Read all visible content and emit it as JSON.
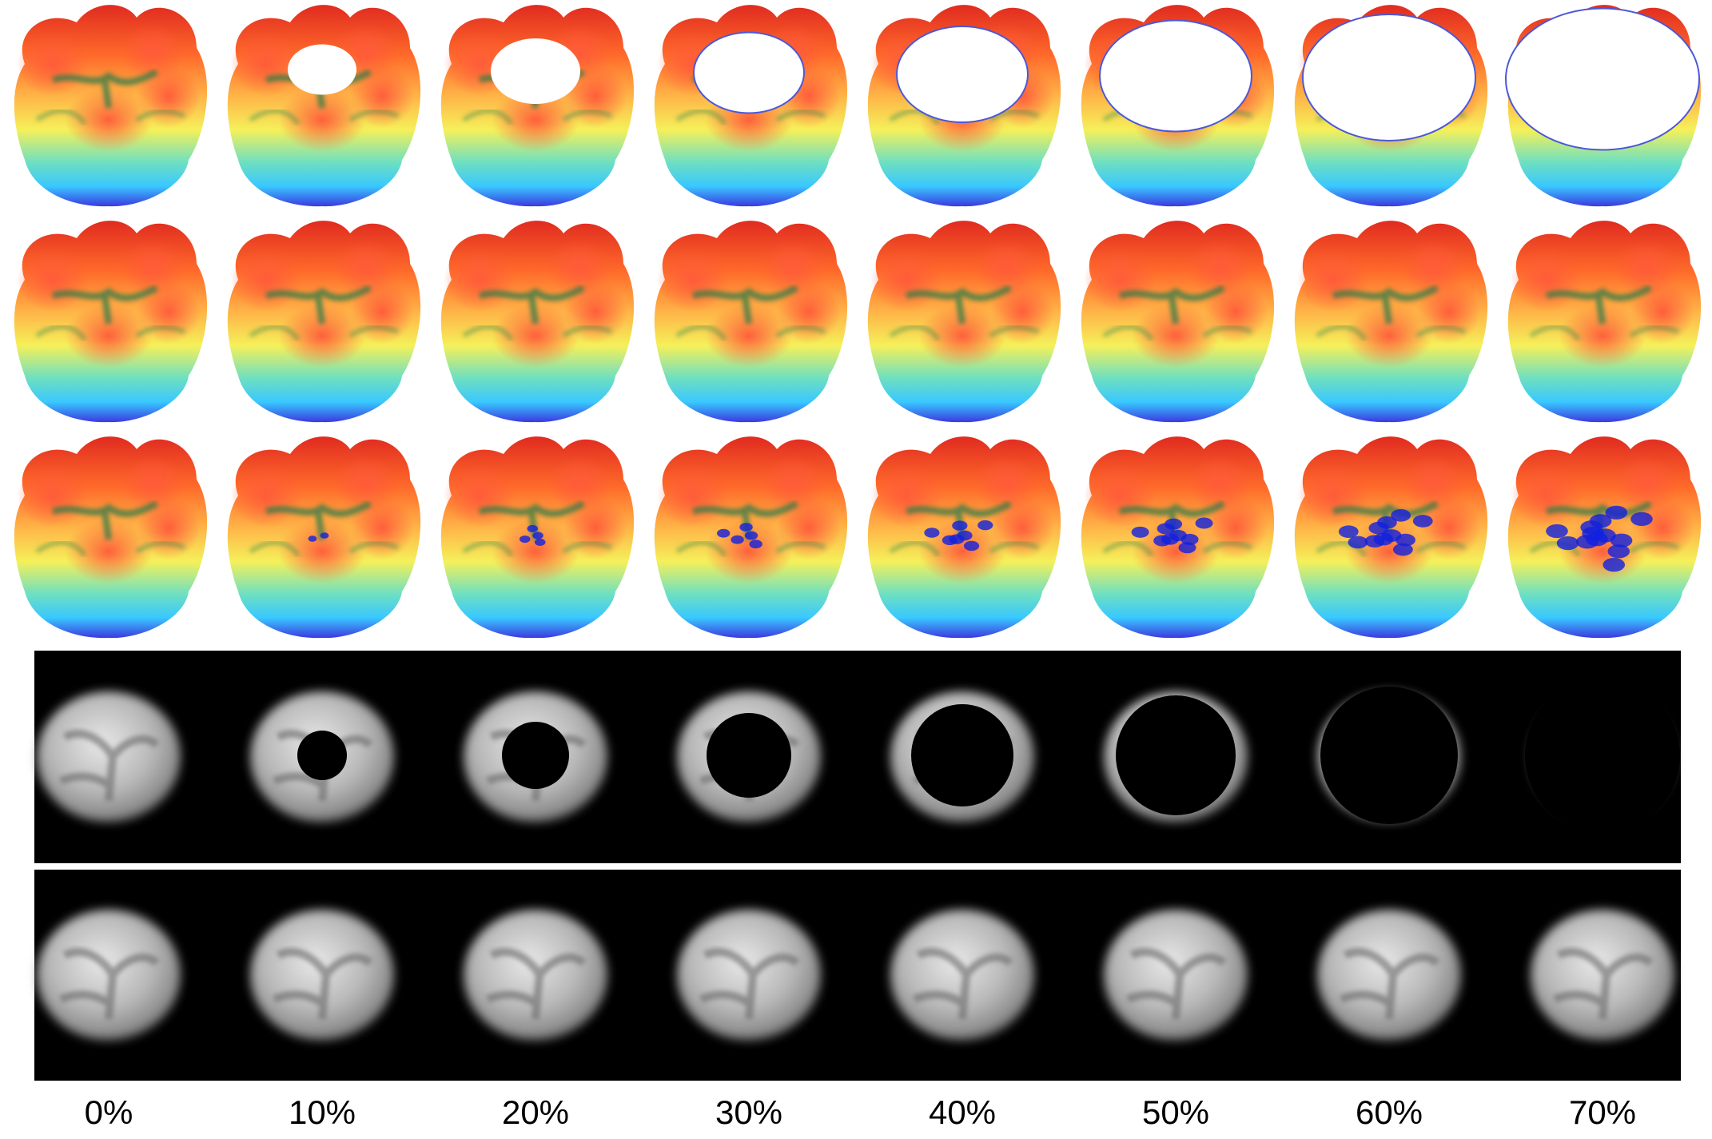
{
  "figure": {
    "percent_labels": [
      "0%",
      "10%",
      "20%",
      "30%",
      "40%",
      "50%",
      "60%",
      "70%"
    ],
    "rows": [
      {
        "kind": "surface-3d",
        "content": "masked",
        "hole_fraction": [
          0,
          0.1,
          0.2,
          0.3,
          0.4,
          0.5,
          0.6,
          0.7
        ]
      },
      {
        "kind": "surface-3d",
        "content": "reconstruction"
      },
      {
        "kind": "surface-3d",
        "content": "reconstruction-with-error",
        "artifact_level": [
          0,
          0.1,
          0.2,
          0.3,
          0.4,
          0.5,
          0.6,
          0.7
        ]
      },
      {
        "kind": "depth-map",
        "content": "masked",
        "hole_fraction": [
          0,
          0.1,
          0.2,
          0.3,
          0.4,
          0.5,
          0.6,
          0.7
        ]
      },
      {
        "kind": "depth-map",
        "content": "reconstruction"
      }
    ],
    "colors": {
      "background": "#ffffff",
      "panel_background": "#000000",
      "surface_colormap": [
        "#2b2be0",
        "#39c8ff",
        "#3fe0a0",
        "#f5f05a",
        "#ffb347",
        "#ff6a2a",
        "#e02b20"
      ],
      "artifact_color": "#1020e0"
    }
  }
}
